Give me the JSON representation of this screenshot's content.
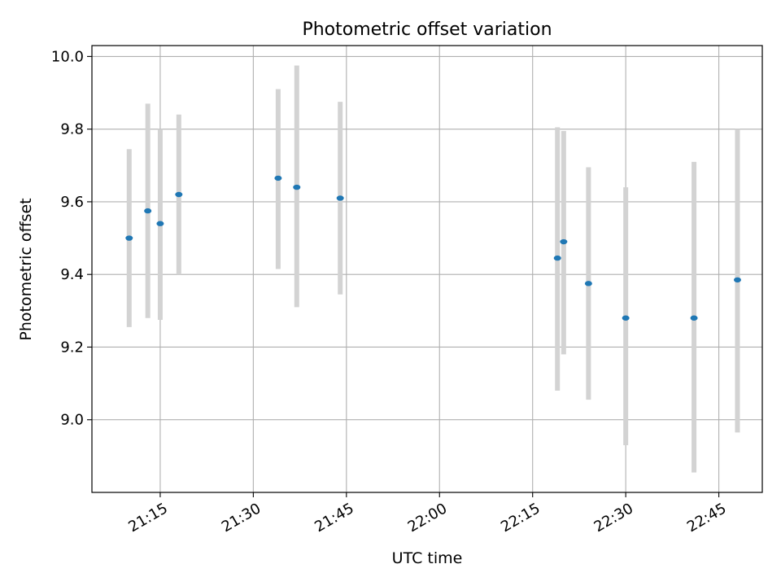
{
  "chart_data": {
    "type": "scatter",
    "title": "Photometric offset variation",
    "xlabel": "UTC time",
    "ylabel": "Photometric offset",
    "x_tick_labels": [
      "21:15",
      "21:30",
      "21:45",
      "22:00",
      "22:15",
      "22:30",
      "22:45"
    ],
    "y_tick_labels": [
      "9.0",
      "9.2",
      "9.4",
      "9.6",
      "9.8",
      "10.0"
    ],
    "xlim": [
      "21:04",
      "22:52"
    ],
    "ylim": [
      8.8,
      10.03
    ],
    "grid": true,
    "colors": {
      "points": "#1f77b4",
      "errorbars": "#d3d3d3",
      "grid": "#b0b0b0"
    },
    "series": [
      {
        "x": [
          "21:10",
          "21:13",
          "21:15",
          "21:18",
          "21:34",
          "21:37",
          "21:44",
          "22:19",
          "22:20",
          "22:24",
          "22:30",
          "22:41",
          "22:48"
        ],
        "y": [
          9.5,
          9.575,
          9.54,
          9.62,
          9.665,
          9.64,
          9.61,
          9.445,
          9.49,
          9.375,
          9.28,
          9.28,
          9.385
        ],
        "yerr_low": [
          9.255,
          9.28,
          9.275,
          9.4,
          9.415,
          9.31,
          9.345,
          9.08,
          9.18,
          9.055,
          8.93,
          8.855,
          8.965
        ],
        "yerr_high": [
          9.745,
          9.87,
          9.8,
          9.84,
          9.91,
          9.975,
          9.875,
          9.805,
          9.795,
          9.695,
          9.64,
          9.71,
          9.8
        ]
      }
    ]
  }
}
